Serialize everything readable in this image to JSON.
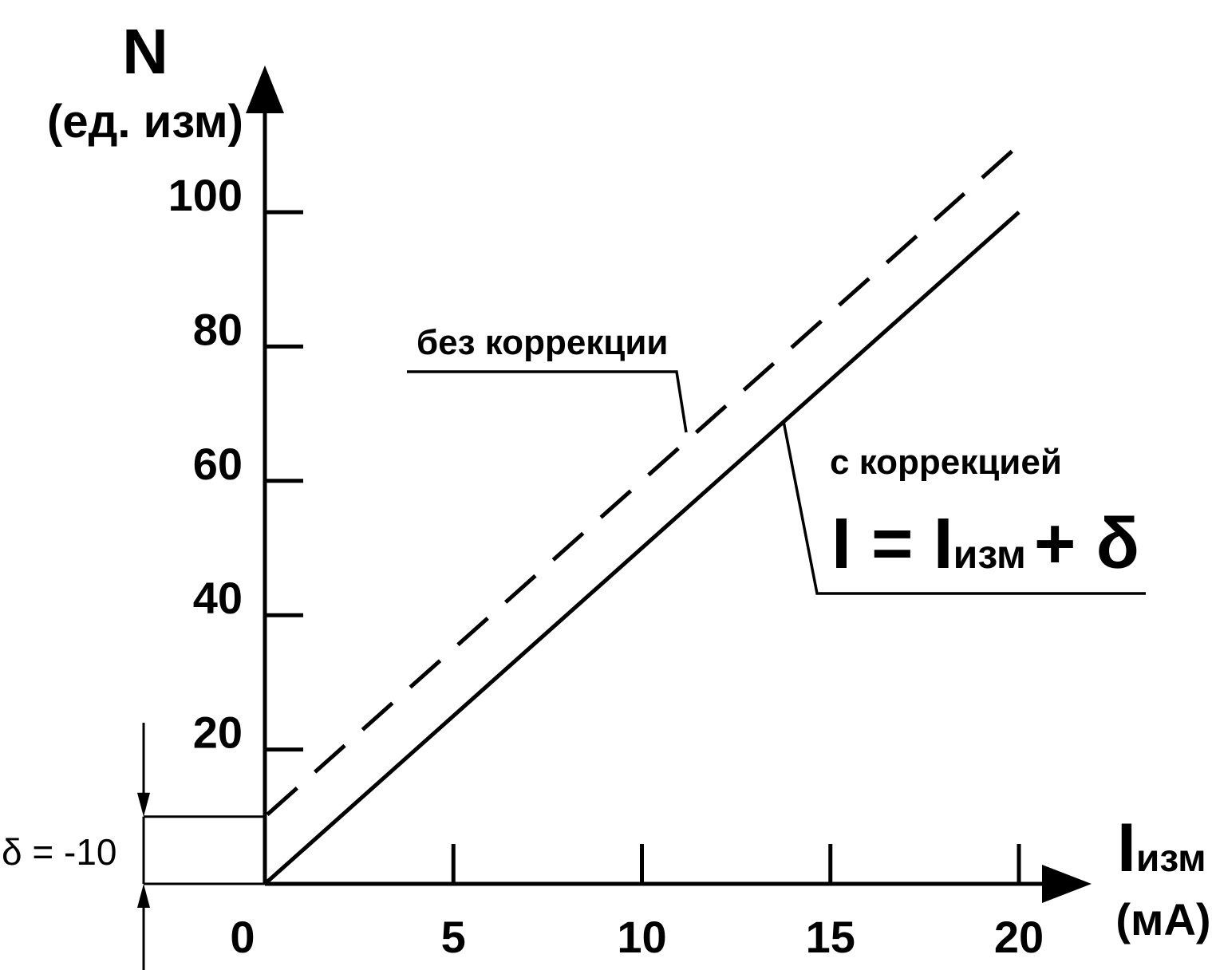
{
  "chart_data": {
    "type": "line",
    "x": [
      0,
      20
    ],
    "x_ticks": [
      0,
      5,
      10,
      15,
      20
    ],
    "y_ticks": [
      20,
      40,
      60,
      80,
      100
    ],
    "xlim": [
      0,
      20
    ],
    "ylim": [
      0,
      100
    ],
    "y_axis_title": "N",
    "y_axis_unit": "(ед. изм)",
    "x_axis_title_main": "I",
    "x_axis_title_sub": "изм",
    "x_axis_unit": "(мА)",
    "series": [
      {
        "name": "без коррекции",
        "style": "dashed",
        "x": [
          0,
          20
        ],
        "y": [
          10,
          110
        ]
      },
      {
        "name": "с коррекцией",
        "style": "solid",
        "x": [
          0,
          20
        ],
        "y": [
          0,
          100
        ]
      }
    ],
    "formula": {
      "left": "I = I",
      "sub": "изм",
      "right": "+ δ"
    },
    "delta_label": "δ = -10",
    "offset": 10,
    "color": "#000000"
  }
}
